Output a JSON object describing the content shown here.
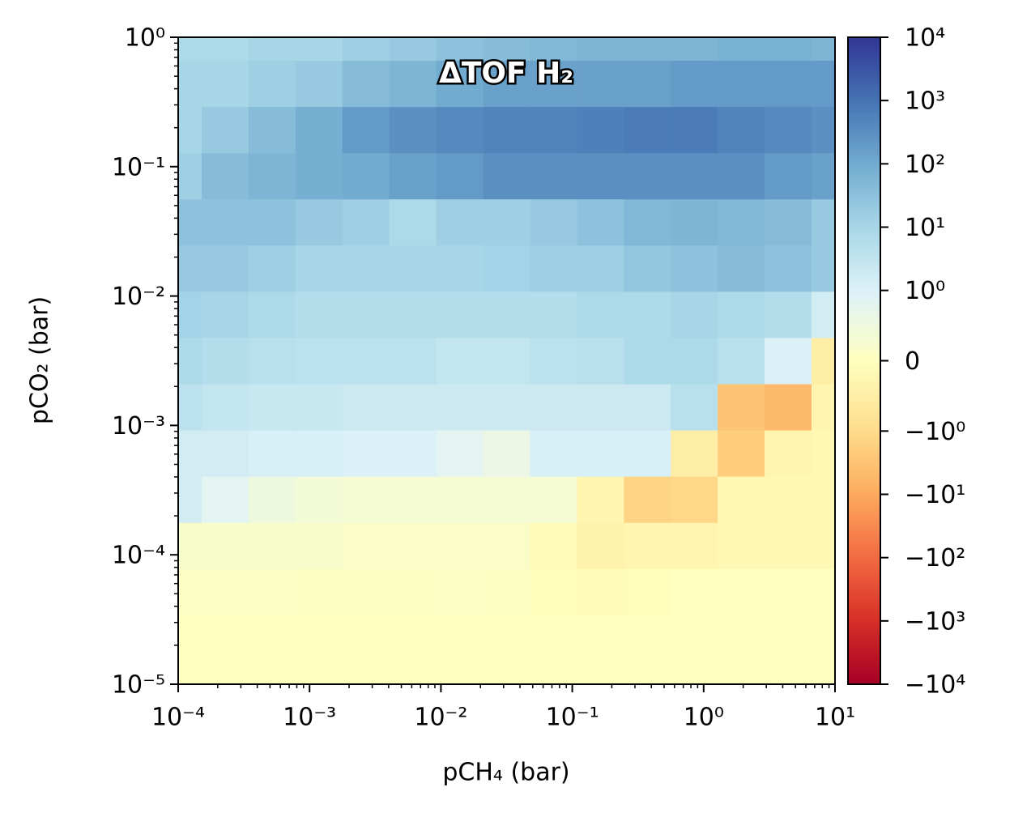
{
  "chart_data": {
    "type": "heatmap",
    "title": "ΔTOF H₂",
    "x_label": "pCH₄ (bar)",
    "y_label": "pCO₂ (bar)",
    "xscale": "log",
    "yscale": "log",
    "xlim": [
      0.0001,
      10
    ],
    "ylim": [
      1e-05,
      1
    ],
    "xticks": [
      {
        "value": 0.0001,
        "label": "10⁻⁴"
      },
      {
        "value": 0.001,
        "label": "10⁻³"
      },
      {
        "value": 0.01,
        "label": "10⁻²"
      },
      {
        "value": 0.1,
        "label": "10⁻¹"
      },
      {
        "value": 1,
        "label": "10⁰"
      },
      {
        "value": 10,
        "label": "10¹"
      }
    ],
    "yticks": [
      {
        "value": 1e-05,
        "label": "10⁻⁵"
      },
      {
        "value": 0.0001,
        "label": "10⁻⁴"
      },
      {
        "value": 0.001,
        "label": "10⁻³"
      },
      {
        "value": 0.01,
        "label": "10⁻²"
      },
      {
        "value": 0.1,
        "label": "10⁻¹"
      },
      {
        "value": 1,
        "label": "10⁰"
      }
    ],
    "x": [
      0.0001,
      0.000228,
      0.000518,
      0.00118,
      0.00268,
      0.00611,
      0.0139,
      0.0316,
      0.072,
      0.164,
      0.373,
      0.848,
      1.93,
      4.39,
      10
    ],
    "y": [
      1e-05,
      2.28e-05,
      5.18e-05,
      0.000118,
      0.000268,
      0.000611,
      0.00139,
      0.00316,
      0.0072,
      0.0164,
      0.0373,
      0.0848,
      0.193,
      0.439,
      1
    ],
    "z": [
      [
        0.01,
        0.01,
        0.01,
        0.01,
        0.01,
        0.01,
        0.01,
        0.01,
        0.01,
        0.01,
        0.01,
        0.01,
        0.01,
        0.01,
        0.01
      ],
      [
        0.02,
        0.02,
        0.02,
        0.02,
        0.02,
        0.02,
        0.02,
        0.02,
        0.01,
        0.01,
        0.01,
        0.01,
        0.01,
        0.01,
        0.01
      ],
      [
        0.1,
        0.1,
        0.1,
        0.05,
        0.05,
        0.05,
        0.1,
        0.05,
        -0.05,
        -0.1,
        -0.05,
        0,
        0,
        0,
        0
      ],
      [
        0.2,
        0.2,
        0.2,
        0.2,
        0.15,
        0.15,
        0.15,
        0.15,
        -0.1,
        -0.4,
        -0.3,
        -0.3,
        -0.2,
        -0.2,
        -0.2
      ],
      [
        1.5,
        0.8,
        0.5,
        0.4,
        0.3,
        0.3,
        0.3,
        0.3,
        0.3,
        -0.3,
        -1.5,
        -1.2,
        -0.2,
        -0.2,
        -0.2
      ],
      [
        1.5,
        1.5,
        1.2,
        1.2,
        1,
        1,
        0.8,
        0.6,
        1.2,
        1.2,
        1.2,
        -0.5,
        -2,
        -0.3,
        -0.2
      ],
      [
        4,
        3,
        2.5,
        2.5,
        2,
        2,
        2,
        2,
        2,
        2,
        2,
        5,
        -3,
        -5,
        -0.3
      ],
      [
        8,
        6,
        5,
        4,
        4,
        4,
        3,
        3,
        4,
        5,
        8,
        8,
        5,
        1,
        -0.5
      ],
      [
        12,
        10,
        8,
        6,
        6,
        6,
        6,
        6,
        6,
        8,
        8,
        10,
        8,
        6,
        1.5
      ],
      [
        20,
        20,
        15,
        10,
        10,
        10,
        10,
        12,
        15,
        15,
        25,
        30,
        40,
        30,
        20
      ],
      [
        30,
        30,
        30,
        20,
        15,
        8,
        15,
        15,
        20,
        30,
        50,
        60,
        50,
        40,
        20
      ],
      [
        15,
        40,
        60,
        80,
        100,
        150,
        200,
        300,
        300,
        300,
        300,
        300,
        300,
        200,
        150
      ],
      [
        10,
        20,
        40,
        80,
        200,
        300,
        400,
        500,
        500,
        600,
        700,
        700,
        500,
        400,
        300
      ],
      [
        10,
        10,
        15,
        20,
        40,
        60,
        100,
        150,
        150,
        150,
        150,
        200,
        200,
        200,
        200
      ],
      [
        8,
        8,
        10,
        10,
        15,
        20,
        30,
        40,
        50,
        60,
        60,
        60,
        70,
        70,
        60
      ]
    ],
    "colormap": "RdYlBu",
    "color_norm": "symlog",
    "linthresh": 1,
    "clim": [
      -10000,
      10000
    ],
    "cticks": [
      {
        "value": 10000,
        "label": "10⁴"
      },
      {
        "value": 1000,
        "label": "10³"
      },
      {
        "value": 100,
        "label": "10²"
      },
      {
        "value": 10,
        "label": "10¹"
      },
      {
        "value": 1,
        "label": "10⁰"
      },
      0,
      {
        "value": -1,
        "label": "−10⁰"
      },
      {
        "value": -10,
        "label": "−10¹"
      },
      {
        "value": -100,
        "label": "−10²"
      },
      {
        "value": -1000,
        "label": "−10³"
      },
      {
        "value": -10000,
        "label": "−10⁴"
      }
    ]
  }
}
